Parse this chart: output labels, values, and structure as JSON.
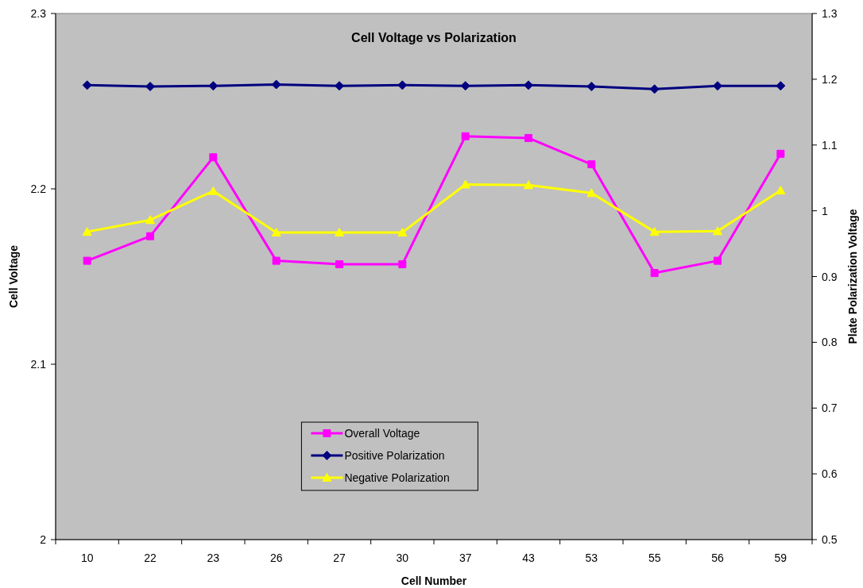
{
  "chart_data": {
    "type": "line",
    "title": "Cell Voltage vs Polarization",
    "xlabel": "Cell Number",
    "ylabel": "Cell Voltage",
    "y2label": "Plate Polarization Voltage",
    "categories": [
      "10",
      "22",
      "23",
      "26",
      "27",
      "30",
      "37",
      "43",
      "53",
      "55",
      "56",
      "59"
    ],
    "ylim": [
      2,
      2.3
    ],
    "yticks": [
      2,
      2.1,
      2.2,
      2.3
    ],
    "y2lim": [
      0.5,
      1.3
    ],
    "y2ticks": [
      0.5,
      0.6,
      0.7,
      0.8,
      0.9,
      1,
      1.1,
      1.2,
      1.3
    ],
    "grid": false,
    "legend": "bottom left",
    "series": [
      {
        "name": "Overall Voltage",
        "color": "#ff00ff",
        "marker": "square",
        "values": [
          2.159,
          2.173,
          2.218,
          2.159,
          2.157,
          2.157,
          2.23,
          2.229,
          2.214,
          2.152,
          2.159,
          2.22
        ]
      },
      {
        "name": "Positive Polarization",
        "color": "#000080",
        "marker": "diamond",
        "axis": "y2",
        "values": [
          1.191,
          1.189,
          1.19,
          1.192,
          1.19,
          1.191,
          1.19,
          1.191,
          1.189,
          1.185,
          1.19,
          1.19
        ]
      },
      {
        "name": "Negative Polarization",
        "color": "#ffff00",
        "marker": "triangle",
        "axis": "y2",
        "values": [
          0.968,
          0.986,
          1.03,
          0.967,
          0.967,
          0.967,
          1.04,
          1.039,
          1.027,
          0.968,
          0.969,
          1.031
        ]
      }
    ]
  }
}
